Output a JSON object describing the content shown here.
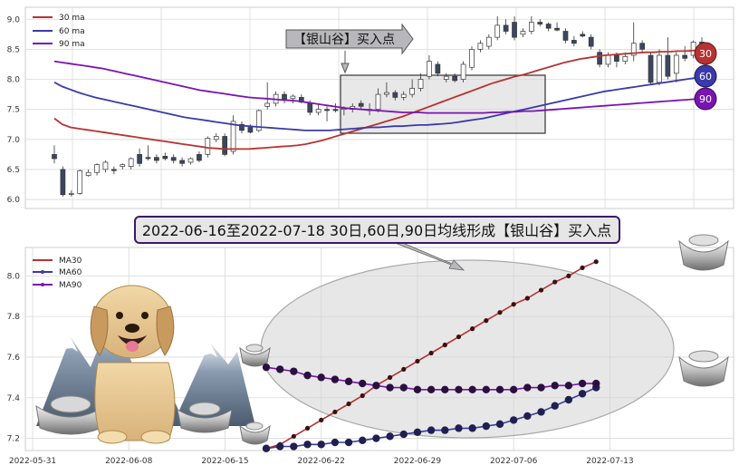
{
  "colors": {
    "ma30": "#b83232",
    "ma60": "#3a3aa8",
    "ma90": "#7a14b0",
    "candle_down": "#3c4660",
    "grid": "#d9d9d9",
    "plot_bg": "#ffffff"
  },
  "chart_data": [
    {
      "type": "candlestick",
      "legend": [
        "30 ma",
        "60 ma",
        "90 ma"
      ],
      "legend_position": "top-left",
      "grid": true,
      "ylim": [
        5.85,
        9.2
      ],
      "yticks": [
        "6.0",
        "6.5",
        "7.0",
        "7.5",
        "8.0",
        "8.5",
        "9.0"
      ],
      "annotation": "【银山谷】买入点",
      "end_badges": [
        "30",
        "60",
        "90"
      ],
      "candles": [
        {
          "o": 6.75,
          "h": 6.9,
          "l": 6.6,
          "c": 6.68
        },
        {
          "o": 6.5,
          "h": 6.55,
          "l": 6.05,
          "c": 6.08
        },
        {
          "o": 6.1,
          "h": 6.15,
          "l": 6.05,
          "c": 6.1
        },
        {
          "o": 6.1,
          "h": 6.5,
          "l": 6.08,
          "c": 6.48
        },
        {
          "o": 6.4,
          "h": 6.5,
          "l": 6.38,
          "c": 6.45
        },
        {
          "o": 6.45,
          "h": 6.6,
          "l": 6.4,
          "c": 6.58
        },
        {
          "o": 6.5,
          "h": 6.65,
          "l": 6.45,
          "c": 6.62
        },
        {
          "o": 6.5,
          "h": 6.55,
          "l": 6.42,
          "c": 6.48
        },
        {
          "o": 6.55,
          "h": 6.6,
          "l": 6.5,
          "c": 6.58
        },
        {
          "o": 6.55,
          "h": 6.7,
          "l": 6.5,
          "c": 6.68
        },
        {
          "o": 6.75,
          "h": 6.85,
          "l": 6.55,
          "c": 6.6
        },
        {
          "o": 6.7,
          "h": 6.9,
          "l": 6.65,
          "c": 6.68
        },
        {
          "o": 6.7,
          "h": 6.75,
          "l": 6.6,
          "c": 6.65
        },
        {
          "o": 6.72,
          "h": 6.78,
          "l": 6.65,
          "c": 6.68
        },
        {
          "o": 6.7,
          "h": 6.75,
          "l": 6.6,
          "c": 6.65
        },
        {
          "o": 6.65,
          "h": 6.7,
          "l": 6.55,
          "c": 6.6
        },
        {
          "o": 6.62,
          "h": 6.7,
          "l": 6.58,
          "c": 6.68
        },
        {
          "o": 6.75,
          "h": 6.8,
          "l": 6.62,
          "c": 6.65
        },
        {
          "o": 6.75,
          "h": 7.05,
          "l": 6.7,
          "c": 7.02
        },
        {
          "o": 7.0,
          "h": 7.1,
          "l": 6.95,
          "c": 7.05
        },
        {
          "o": 7.05,
          "h": 7.1,
          "l": 6.72,
          "c": 6.75
        },
        {
          "o": 6.8,
          "h": 7.4,
          "l": 6.75,
          "c": 7.3
        },
        {
          "o": 7.25,
          "h": 7.3,
          "l": 7.1,
          "c": 7.15
        },
        {
          "o": 7.2,
          "h": 7.25,
          "l": 7.1,
          "c": 7.12
        },
        {
          "o": 7.15,
          "h": 7.5,
          "l": 7.12,
          "c": 7.48
        },
        {
          "o": 7.55,
          "h": 7.95,
          "l": 7.5,
          "c": 7.6
        },
        {
          "o": 7.6,
          "h": 7.8,
          "l": 7.55,
          "c": 7.75
        },
        {
          "o": 7.75,
          "h": 7.8,
          "l": 7.6,
          "c": 7.65
        },
        {
          "o": 7.68,
          "h": 7.75,
          "l": 7.6,
          "c": 7.72
        },
        {
          "o": 7.7,
          "h": 7.75,
          "l": 7.6,
          "c": 7.62
        },
        {
          "o": 7.6,
          "h": 7.65,
          "l": 7.4,
          "c": 7.45
        },
        {
          "o": 7.45,
          "h": 7.6,
          "l": 7.4,
          "c": 7.5
        },
        {
          "o": 7.5,
          "h": 7.55,
          "l": 7.3,
          "c": 7.48
        },
        {
          "o": 7.5,
          "h": 7.6,
          "l": 7.45,
          "c": 7.48
        },
        {
          "o": 7.5,
          "h": 7.55,
          "l": 7.4,
          "c": 7.52
        },
        {
          "o": 7.5,
          "h": 7.6,
          "l": 7.45,
          "c": 7.55
        },
        {
          "o": 7.6,
          "h": 7.65,
          "l": 7.5,
          "c": 7.55
        },
        {
          "o": 7.5,
          "h": 7.6,
          "l": 7.4,
          "c": 7.48
        },
        {
          "o": 7.5,
          "h": 7.85,
          "l": 7.45,
          "c": 7.75
        },
        {
          "o": 7.75,
          "h": 7.95,
          "l": 7.7,
          "c": 7.78
        },
        {
          "o": 7.78,
          "h": 7.82,
          "l": 7.65,
          "c": 7.7
        },
        {
          "o": 7.7,
          "h": 7.8,
          "l": 7.65,
          "c": 7.75
        },
        {
          "o": 7.75,
          "h": 8.0,
          "l": 7.7,
          "c": 7.85
        },
        {
          "o": 7.85,
          "h": 8.1,
          "l": 7.8,
          "c": 8.0
        },
        {
          "o": 8.05,
          "h": 8.4,
          "l": 8.0,
          "c": 8.3
        },
        {
          "o": 8.25,
          "h": 8.3,
          "l": 8.05,
          "c": 8.1
        },
        {
          "o": 8.0,
          "h": 8.1,
          "l": 7.95,
          "c": 8.05
        },
        {
          "o": 8.05,
          "h": 8.1,
          "l": 7.95,
          "c": 7.98
        },
        {
          "o": 8.0,
          "h": 8.3,
          "l": 7.95,
          "c": 8.25
        },
        {
          "o": 8.2,
          "h": 8.55,
          "l": 8.15,
          "c": 8.5
        },
        {
          "o": 8.5,
          "h": 8.65,
          "l": 8.45,
          "c": 8.6
        },
        {
          "o": 8.55,
          "h": 8.75,
          "l": 8.5,
          "c": 8.7
        },
        {
          "o": 8.7,
          "h": 9.05,
          "l": 8.65,
          "c": 8.9
        },
        {
          "o": 8.9,
          "h": 9.0,
          "l": 8.75,
          "c": 8.8
        },
        {
          "o": 8.95,
          "h": 9.05,
          "l": 8.65,
          "c": 8.7
        },
        {
          "o": 8.75,
          "h": 8.85,
          "l": 8.7,
          "c": 8.8
        },
        {
          "o": 8.8,
          "h": 9.05,
          "l": 8.75,
          "c": 8.95
        },
        {
          "o": 8.95,
          "h": 9.0,
          "l": 8.88,
          "c": 8.92
        },
        {
          "o": 8.92,
          "h": 8.95,
          "l": 8.8,
          "c": 8.85
        },
        {
          "o": 8.85,
          "h": 8.95,
          "l": 8.8,
          "c": 8.82
        },
        {
          "o": 8.8,
          "h": 8.85,
          "l": 8.6,
          "c": 8.65
        },
        {
          "o": 8.65,
          "h": 8.72,
          "l": 8.55,
          "c": 8.6
        },
        {
          "o": 8.75,
          "h": 8.8,
          "l": 8.7,
          "c": 8.72
        },
        {
          "o": 8.7,
          "h": 8.75,
          "l": 8.5,
          "c": 8.55
        },
        {
          "o": 8.45,
          "h": 8.5,
          "l": 8.2,
          "c": 8.25
        },
        {
          "o": 8.25,
          "h": 8.45,
          "l": 8.2,
          "c": 8.4
        },
        {
          "o": 8.4,
          "h": 8.45,
          "l": 8.2,
          "c": 8.3
        },
        {
          "o": 8.3,
          "h": 8.45,
          "l": 8.25,
          "c": 8.38
        },
        {
          "o": 8.4,
          "h": 8.95,
          "l": 8.3,
          "c": 8.6
        },
        {
          "o": 8.6,
          "h": 8.65,
          "l": 8.45,
          "c": 8.5
        },
        {
          "o": 8.4,
          "h": 8.45,
          "l": 7.9,
          "c": 7.95
        },
        {
          "o": 7.95,
          "h": 8.5,
          "l": 7.9,
          "c": 8.4
        },
        {
          "o": 8.4,
          "h": 8.7,
          "l": 8.0,
          "c": 8.05
        },
        {
          "o": 8.1,
          "h": 8.45,
          "l": 7.95,
          "c": 8.4
        },
        {
          "o": 8.4,
          "h": 8.55,
          "l": 8.3,
          "c": 8.35
        },
        {
          "o": 8.4,
          "h": 8.65,
          "l": 8.35,
          "c": 8.62
        },
        {
          "o": 8.62,
          "h": 8.7,
          "l": 8.5,
          "c": 8.55
        }
      ],
      "ma30": [
        7.35,
        7.25,
        7.2,
        7.18,
        7.16,
        7.14,
        7.12,
        7.1,
        7.08,
        7.06,
        7.04,
        7.02,
        7.0,
        6.98,
        6.96,
        6.94,
        6.92,
        6.9,
        6.88,
        6.86,
        6.85,
        6.84,
        6.84,
        6.84,
        6.84,
        6.85,
        6.86,
        6.87,
        6.88,
        6.89,
        6.9,
        6.92,
        6.95,
        6.98,
        7.02,
        7.06,
        7.1,
        7.14,
        7.18,
        7.22,
        7.26,
        7.3,
        7.34,
        7.38,
        7.43,
        7.48,
        7.53,
        7.58,
        7.63,
        7.68,
        7.73,
        7.78,
        7.83,
        7.88,
        7.93,
        7.97,
        8.01,
        8.05,
        8.08,
        8.12,
        8.16,
        8.2,
        8.24,
        8.28,
        8.31,
        8.34,
        8.36,
        8.38,
        8.4,
        8.41,
        8.42,
        8.43,
        8.44,
        8.45,
        8.45,
        8.46,
        8.46,
        8.47,
        8.47,
        8.48,
        8.48
      ],
      "ma60": [
        7.95,
        7.88,
        7.83,
        7.78,
        7.74,
        7.7,
        7.67,
        7.64,
        7.61,
        7.58,
        7.55,
        7.52,
        7.49,
        7.46,
        7.43,
        7.4,
        7.37,
        7.35,
        7.33,
        7.31,
        7.29,
        7.27,
        7.25,
        7.23,
        7.22,
        7.21,
        7.2,
        7.19,
        7.18,
        7.17,
        7.16,
        7.15,
        7.15,
        7.15,
        7.15,
        7.16,
        7.17,
        7.18,
        7.19,
        7.2,
        7.2,
        7.21,
        7.22,
        7.22,
        7.23,
        7.24,
        7.24,
        7.25,
        7.26,
        7.27,
        7.29,
        7.31,
        7.33,
        7.35,
        7.38,
        7.41,
        7.44,
        7.47,
        7.5,
        7.53,
        7.56,
        7.59,
        7.62,
        7.65,
        7.68,
        7.71,
        7.74,
        7.77,
        7.8,
        7.82,
        7.84,
        7.86,
        7.88,
        7.9,
        7.92,
        7.94,
        7.96,
        7.98,
        8.0,
        8.02,
        8.04
      ],
      "ma90": [
        8.3,
        8.28,
        8.26,
        8.24,
        8.22,
        8.2,
        8.18,
        8.15,
        8.12,
        8.09,
        8.06,
        8.03,
        8.0,
        7.97,
        7.94,
        7.91,
        7.88,
        7.85,
        7.82,
        7.8,
        7.78,
        7.76,
        7.74,
        7.72,
        7.7,
        7.69,
        7.68,
        7.67,
        7.66,
        7.65,
        7.64,
        7.62,
        7.6,
        7.58,
        7.56,
        7.54,
        7.52,
        7.51,
        7.5,
        7.49,
        7.48,
        7.47,
        7.46,
        7.45,
        7.45,
        7.45,
        7.44,
        7.44,
        7.44,
        7.44,
        7.44,
        7.44,
        7.44,
        7.44,
        7.45,
        7.45,
        7.46,
        7.46,
        7.47,
        7.47,
        7.48,
        7.49,
        7.5,
        7.51,
        7.52,
        7.53,
        7.54,
        7.55,
        7.56,
        7.57,
        7.58,
        7.59,
        7.6,
        7.61,
        7.62,
        7.63,
        7.64,
        7.65,
        7.66,
        7.67,
        7.68
      ]
    },
    {
      "type": "line",
      "title": "2022-06-16至2022-07-18 30日,60日,90日均线形成【银山谷】买入点",
      "legend": [
        "MA30",
        "MA60",
        "MA90"
      ],
      "legend_position": "top-left",
      "grid": true,
      "ylim": [
        7.14,
        8.14
      ],
      "yticks": [
        "7.2",
        "7.4",
        "7.6",
        "7.8",
        "8.0"
      ],
      "x_ticks": [
        "2022-05-31",
        "2022-06-08",
        "2022-06-15",
        "2022-06-22",
        "2022-06-29",
        "2022-07-06",
        "2022-07-13"
      ],
      "x_range": [
        0,
        51
      ],
      "x_tick_positions": [
        0,
        7,
        14,
        21,
        28,
        35,
        42
      ],
      "series": [
        {
          "name": "MA30",
          "start": 17,
          "values": [
            7.15,
            7.17,
            7.21,
            7.25,
            7.29,
            7.33,
            7.37,
            7.41,
            7.46,
            7.5,
            7.54,
            7.58,
            7.62,
            7.66,
            7.7,
            7.74,
            7.78,
            7.82,
            7.86,
            7.89,
            7.93,
            7.97,
            8.0,
            8.04,
            8.07
          ]
        },
        {
          "name": "MA60",
          "start": 17,
          "values": [
            7.15,
            7.16,
            7.16,
            7.17,
            7.17,
            7.18,
            7.18,
            7.19,
            7.2,
            7.21,
            7.22,
            7.23,
            7.24,
            7.24,
            7.25,
            7.25,
            7.26,
            7.27,
            7.29,
            7.31,
            7.33,
            7.36,
            7.39,
            7.42,
            7.45
          ]
        },
        {
          "name": "MA90",
          "start": 17,
          "values": [
            7.55,
            7.54,
            7.53,
            7.51,
            7.5,
            7.49,
            7.48,
            7.47,
            7.46,
            7.45,
            7.45,
            7.44,
            7.44,
            7.44,
            7.44,
            7.44,
            7.44,
            7.44,
            7.44,
            7.45,
            7.45,
            7.46,
            7.46,
            7.47,
            7.47
          ]
        }
      ]
    }
  ]
}
